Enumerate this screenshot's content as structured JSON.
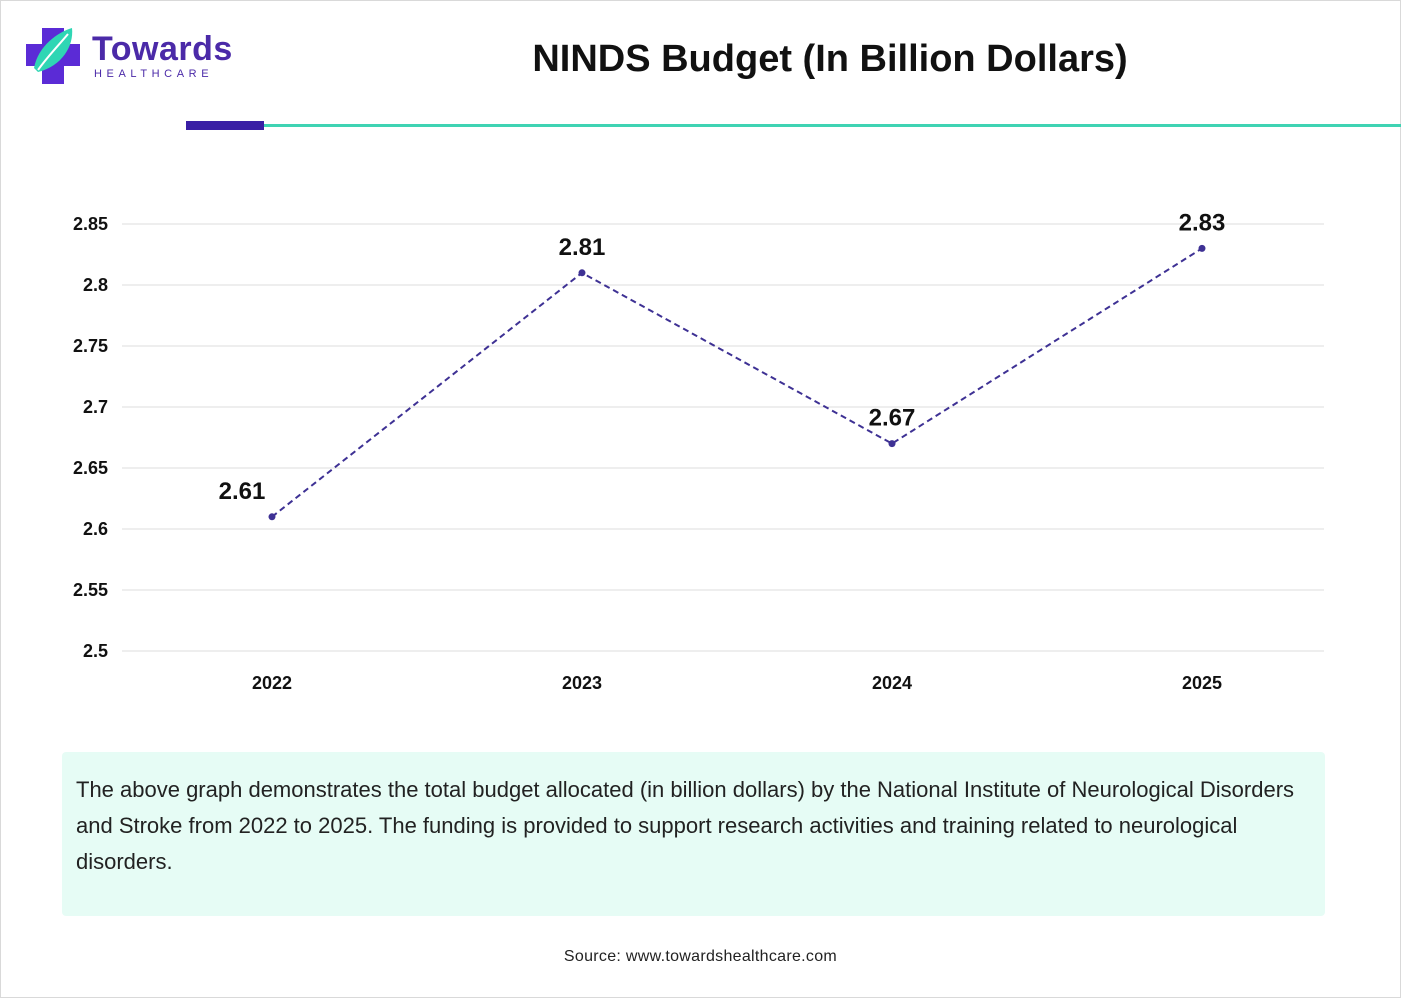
{
  "brand": {
    "name": "Towards",
    "tagline": "HEALTHCARE",
    "primary_color": "#3a1fa5",
    "accent_color": "#3fd3b3"
  },
  "header": {
    "title": "NINDS Budget (In Billion Dollars)"
  },
  "chart_data": {
    "type": "line",
    "title": "NINDS Budget (In Billion Dollars)",
    "categories": [
      "2022",
      "2023",
      "2024",
      "2025"
    ],
    "values": [
      2.61,
      2.81,
      2.67,
      2.83
    ],
    "data_labels": [
      "2.61",
      "2.81",
      "2.67",
      "2.83"
    ],
    "y_ticks": [
      "2.85",
      "2.8",
      "2.75",
      "2.7",
      "2.65",
      "2.6",
      "2.55",
      "2.5"
    ],
    "ylim": [
      2.5,
      2.85
    ],
    "xlabel": "",
    "ylabel": "",
    "grid": true,
    "line_style": "dashed",
    "line_color": "#3e3194"
  },
  "description": {
    "text": "The above graph demonstrates the total budget allocated (in billion dollars) by the National Institute of Neurological Disorders and Stroke from 2022 to 2025. The funding is provided to support research activities and training related to neurological disorders."
  },
  "footer": {
    "source": "Source: www.towardshealthcare.com"
  }
}
